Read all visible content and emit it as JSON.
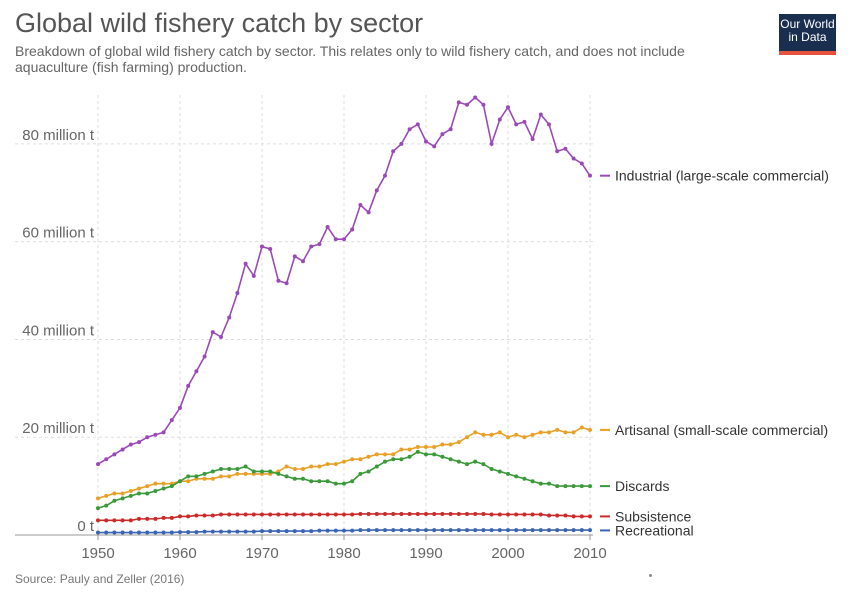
{
  "header": {
    "title": "Global wild fishery catch by sector",
    "subtitle": "Breakdown of global wild fishery catch by sector. This relates only to wild fishery catch, and does not include aquaculture (fish farming) production."
  },
  "logo": {
    "line1": "Our World",
    "line2": "in Data",
    "bg": "#1a2e4f",
    "bar": "#e5533d"
  },
  "footer": {
    "source": "Source: Pauly and Zeller (2016)"
  },
  "chart_data": {
    "type": "line",
    "x": [
      1950,
      1951,
      1952,
      1953,
      1954,
      1955,
      1956,
      1957,
      1958,
      1959,
      1960,
      1961,
      1962,
      1963,
      1964,
      1965,
      1966,
      1967,
      1968,
      1969,
      1970,
      1971,
      1972,
      1973,
      1974,
      1975,
      1976,
      1977,
      1978,
      1979,
      1980,
      1981,
      1982,
      1983,
      1984,
      1985,
      1986,
      1987,
      1988,
      1989,
      1990,
      1991,
      1992,
      1993,
      1994,
      1995,
      1996,
      1997,
      1998,
      1999,
      2000,
      2001,
      2002,
      2003,
      2004,
      2005,
      2006,
      2007,
      2008,
      2009,
      2010
    ],
    "xlim": [
      1950,
      2010
    ],
    "ylim": [
      0,
      90
    ],
    "x_ticks": [
      1950,
      1960,
      1970,
      1980,
      1990,
      2000,
      2010
    ],
    "x_tick_labels": [
      "1950",
      "1960",
      "1970",
      "1980",
      "1990",
      "2000",
      "2010"
    ],
    "y_ticks": [
      0,
      20,
      40,
      60,
      80
    ],
    "y_tick_labels": [
      "0 t",
      "20 million t",
      "40 million t",
      "60 million t",
      "80 million t"
    ],
    "unit": "million t",
    "grid": true,
    "legend": "right, at line ends",
    "series": [
      {
        "name": "Industrial (large-scale commercial)",
        "color": "#9b49b9",
        "values": [
          14.5,
          15.5,
          16.5,
          17.5,
          18.5,
          19,
          20,
          20.5,
          21,
          23.5,
          26,
          30.5,
          33.5,
          36.5,
          41.5,
          40.5,
          44.5,
          49.5,
          55.5,
          53,
          59,
          58.5,
          52,
          51.5,
          57,
          56,
          59,
          59.5,
          63,
          60.5,
          60.5,
          62.5,
          67.5,
          66,
          70.5,
          73.5,
          78.5,
          80,
          83,
          84,
          80.5,
          79.5,
          82,
          83,
          88.5,
          88,
          89.5,
          88,
          80,
          85,
          87.5,
          84,
          84.5,
          81,
          86,
          84,
          78.5,
          79,
          77,
          76,
          73.5
        ]
      },
      {
        "name": "Artisanal (small-scale commercial)",
        "color": "#e8a027",
        "values": [
          7.5,
          8,
          8.5,
          8.5,
          9,
          9.5,
          10,
          10.5,
          10.5,
          10.5,
          11,
          11,
          11.5,
          11.5,
          11.5,
          12,
          12,
          12.5,
          12.5,
          12.5,
          12.5,
          12.5,
          13,
          14,
          13.5,
          13.5,
          14,
          14,
          14.5,
          14.5,
          15,
          15.5,
          15.5,
          16,
          16.5,
          16.5,
          16.5,
          17.5,
          17.5,
          18,
          18,
          18,
          18.5,
          18.5,
          19,
          20,
          21,
          20.5,
          20.5,
          21,
          20,
          20.5,
          20,
          20.5,
          21,
          21,
          21.5,
          21,
          21,
          22,
          21.5
        ]
      },
      {
        "name": "Discards",
        "color": "#3a9a3a",
        "values": [
          5.5,
          6,
          7,
          7.5,
          8,
          8.5,
          8.5,
          9,
          9.5,
          10,
          11,
          12,
          12,
          12.5,
          13,
          13.5,
          13.5,
          13.5,
          14,
          13,
          13,
          13,
          12.5,
          12,
          11.5,
          11.5,
          11,
          11,
          11,
          10.5,
          10.5,
          11,
          12.5,
          13,
          14,
          15,
          15.5,
          15.5,
          16,
          17,
          16.5,
          16.5,
          16,
          15.5,
          15,
          14.5,
          15,
          14.5,
          13.5,
          13,
          12.5,
          12,
          11.5,
          11,
          10.5,
          10.5,
          10,
          10,
          10,
          10,
          10
        ]
      },
      {
        "name": "Subsistence",
        "color": "#cc2a2a",
        "values": [
          3,
          3,
          3,
          3,
          3,
          3.3,
          3.3,
          3.3,
          3.5,
          3.5,
          3.8,
          3.8,
          4,
          4,
          4,
          4.2,
          4.2,
          4.2,
          4.2,
          4.2,
          4.2,
          4.2,
          4.2,
          4.2,
          4.2,
          4.2,
          4.2,
          4.2,
          4.2,
          4.2,
          4.2,
          4.2,
          4.3,
          4.3,
          4.3,
          4.3,
          4.3,
          4.3,
          4.3,
          4.3,
          4.3,
          4.3,
          4.3,
          4.3,
          4.3,
          4.3,
          4.3,
          4.3,
          4.2,
          4.2,
          4.2,
          4.2,
          4.2,
          4.2,
          4.2,
          4,
          4,
          4,
          3.8,
          3.8,
          3.8
        ]
      },
      {
        "name": "Recreational",
        "color": "#3a64b4",
        "values": [
          0.5,
          0.5,
          0.5,
          0.5,
          0.5,
          0.5,
          0.5,
          0.5,
          0.5,
          0.5,
          0.6,
          0.6,
          0.6,
          0.7,
          0.7,
          0.7,
          0.7,
          0.7,
          0.7,
          0.7,
          0.8,
          0.8,
          0.8,
          0.8,
          0.8,
          0.8,
          0.8,
          0.9,
          0.9,
          0.9,
          0.9,
          0.9,
          1,
          1,
          1,
          1,
          1,
          1,
          1,
          1,
          1,
          1,
          1,
          1,
          1,
          1,
          1,
          1,
          1,
          1,
          1,
          1,
          1,
          1,
          1,
          1,
          1,
          1,
          1,
          1,
          1
        ]
      }
    ]
  }
}
